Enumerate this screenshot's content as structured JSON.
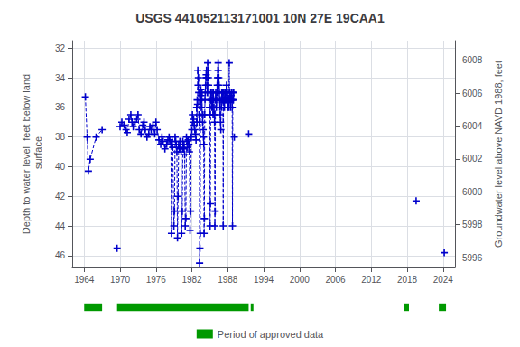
{
  "chart_data": {
    "type": "line",
    "title": "USGS 441052113171001 10N 27E 19CAA1",
    "ylabel": "Depth to water level, feet below land\n surface",
    "y2label": "Groundwater level above NAVD 1988, feet",
    "xlim": [
      1962,
      2026
    ],
    "xticks": [
      1964,
      1970,
      1976,
      1982,
      1988,
      1994,
      2000,
      2006,
      2012,
      2018,
      2024
    ],
    "ylim": [
      46.8,
      31.5
    ],
    "yticks": [
      32,
      34,
      36,
      38,
      40,
      42,
      44,
      46
    ],
    "y2lim": [
      5995.4,
      6009.2
    ],
    "y2ticks": [
      5996,
      5998,
      6000,
      6002,
      6004,
      6006,
      6008
    ],
    "grid": true,
    "legend": "bottom",
    "x": [
      1964.2,
      1964.5,
      1964.7,
      1965.0,
      1966.0,
      1967.0,
      null,
      1969.5,
      null,
      1970.0,
      1970.3,
      1970.7,
      1971.0,
      1971.2,
      1971.5,
      1971.8,
      1972.0,
      1972.2,
      1972.5,
      1972.8,
      1973.0,
      1973.2,
      1973.5,
      1973.8,
      1974.0,
      1974.2,
      1974.5,
      1974.8,
      1975.0,
      1975.2,
      1975.5,
      1975.8,
      1976.0,
      1976.2,
      1976.5,
      1976.8,
      1977.0,
      1977.2,
      1977.5,
      1977.8,
      1978.0,
      1978.2,
      1978.3,
      1978.5,
      1978.6,
      1978.7,
      1978.8,
      1979.0,
      1979.1,
      1979.2,
      1979.3,
      1979.4,
      1979.5,
      1979.6,
      1979.7,
      1979.8,
      1979.9,
      1980.0,
      1980.1,
      1980.2,
      1980.3,
      1980.4,
      1980.5,
      1980.6,
      1980.7,
      1980.8,
      1980.9,
      1981.0,
      1981.1,
      1981.2,
      1981.3,
      1981.4,
      1981.5,
      1981.6,
      1981.7,
      1981.8,
      1981.9,
      1982.0,
      1982.1,
      1982.2,
      1982.3,
      1982.4,
      1982.5,
      1982.6,
      1982.7,
      1982.8,
      1982.85,
      1982.9,
      1982.95,
      1983.0,
      1983.05,
      1983.1,
      1983.15,
      1983.2,
      1983.25,
      1983.3,
      1983.35,
      1983.4,
      1983.45,
      1983.5,
      1983.55,
      1983.6,
      1983.65,
      1983.7,
      1983.75,
      1983.8,
      1983.85,
      1983.9,
      1983.95,
      1984.0,
      1984.05,
      1984.1,
      1984.15,
      1984.2,
      1984.25,
      1984.3,
      1984.35,
      1984.4,
      1984.45,
      1984.5,
      1984.55,
      1984.6,
      1984.65,
      1984.7,
      1984.75,
      1984.8,
      1984.85,
      1984.9,
      1984.95,
      1985.0,
      1985.05,
      1985.1,
      1985.15,
      1985.2,
      1985.25,
      1985.3,
      1985.35,
      1985.4,
      1985.45,
      1985.5,
      1985.55,
      1985.6,
      1985.65,
      1985.7,
      1985.75,
      1985.8,
      1985.85,
      1985.9,
      1985.95,
      1986.0,
      1986.05,
      1986.1,
      1986.15,
      1986.2,
      1986.25,
      1986.3,
      1986.35,
      1986.4,
      1986.45,
      1986.5,
      1986.55,
      1986.6,
      1986.65,
      1986.7,
      1986.75,
      1986.8,
      1986.85,
      1986.9,
      1986.95,
      1987.0,
      1987.05,
      1987.1,
      1987.15,
      1987.2,
      1987.25,
      1987.3,
      1987.35,
      1987.4,
      1987.45,
      1987.5,
      1987.55,
      1987.6,
      1987.65,
      1987.7,
      1987.75,
      1987.8,
      1987.85,
      1987.9,
      1987.95,
      1988.0,
      1988.05,
      1988.1,
      1988.15,
      1988.2,
      1988.25,
      1988.3,
      1988.35,
      1988.4,
      1988.45,
      1988.5,
      1988.55,
      1988.6,
      1988.65,
      1988.7,
      1988.75,
      1988.8,
      1988.85,
      1988.9,
      1988.95,
      1989.0,
      null,
      1989.1,
      null,
      1991.5,
      null,
      2019.5,
      null,
      2024.2
    ],
    "series": [
      {
        "color": "#0000cc",
        "marker": "plus",
        "line_style": "dashed",
        "values": [
          35.3,
          38.0,
          40.3,
          39.5,
          38.0,
          37.5,
          null,
          45.5,
          null,
          37.3,
          37.0,
          37.2,
          37.5,
          37.7,
          36.8,
          36.5,
          37.0,
          37.3,
          37.0,
          36.8,
          36.5,
          37.5,
          37.8,
          37.2,
          37.0,
          37.5,
          38.0,
          37.8,
          37.3,
          37.5,
          37.2,
          37.8,
          37.0,
          37.5,
          38.2,
          38.5,
          38.0,
          38.3,
          38.8,
          38.5,
          38.2,
          38.0,
          38.2,
          38.5,
          44.5,
          38.3,
          38.7,
          44.0,
          43.0,
          38.0,
          38.3,
          38.5,
          39.0,
          44.8,
          42.0,
          38.5,
          38.8,
          38.3,
          38.7,
          39.0,
          44.5,
          43.0,
          38.3,
          38.8,
          38.5,
          39.2,
          44.0,
          43.5,
          38.0,
          38.3,
          38.7,
          38.2,
          38.5,
          39.0,
          44.3,
          43.0,
          38.0,
          37.5,
          36.5,
          37.0,
          36.8,
          37.2,
          37.5,
          37.8,
          38.2,
          36.0,
          37.0,
          35.5,
          35.8,
          33.5,
          34.5,
          34.0,
          35.0,
          36.5,
          37.0,
          46.5,
          45.5,
          44.5,
          35.5,
          34.8,
          35.2,
          36.0,
          35.5,
          35.0,
          36.5,
          37.0,
          36.5,
          37.5,
          38.0,
          38.5,
          44.5,
          43.5,
          36.5,
          35.5,
          35.0,
          34.5,
          34.0,
          33.8,
          33.5,
          34.0,
          34.5,
          35.0,
          33.0,
          33.5,
          34.0,
          34.5,
          35.0,
          35.5,
          36.0,
          36.5,
          44.0,
          42.5,
          35.5,
          35.0,
          35.5,
          36.0,
          35.5,
          35.0,
          35.5,
          36.0,
          36.5,
          35.0,
          35.5,
          36.0,
          36.5,
          37.0,
          44.0,
          43.0,
          35.5,
          35.0,
          35.5,
          36.0,
          35.5,
          35.0,
          34.5,
          34.0,
          33.5,
          33.0,
          33.5,
          34.0,
          34.5,
          35.0,
          35.5,
          36.0,
          36.5,
          37.0,
          37.5,
          35.5,
          36.0,
          35.0,
          35.5,
          35.0,
          35.5,
          35.0,
          44.0,
          35.5,
          35.0,
          35.5,
          36.0,
          35.5,
          35.0,
          35.5,
          35.0,
          35.5,
          35.0,
          34.5,
          35.0,
          35.5,
          35.0,
          35.5,
          36.0,
          35.5,
          36.0,
          35.5,
          33.0,
          35.5,
          35.0,
          35.5,
          36.0,
          35.5,
          35.2,
          35.5,
          35.0,
          35.5,
          36.0,
          44.0,
          35.5,
          35.0,
          35.5,
          35.0,
          null,
          38.0,
          null,
          37.8,
          null,
          42.3,
          null,
          45.8
        ]
      },
      {
        "name": "Period of approved data",
        "type": "span",
        "color": "#009900",
        "periods": [
          [
            1964.0,
            1967.0
          ],
          [
            1969.5,
            1991.5
          ],
          [
            1991.85,
            1992.3
          ],
          [
            2017.5,
            2018.3
          ],
          [
            2023.3,
            2024.5
          ]
        ]
      }
    ]
  }
}
